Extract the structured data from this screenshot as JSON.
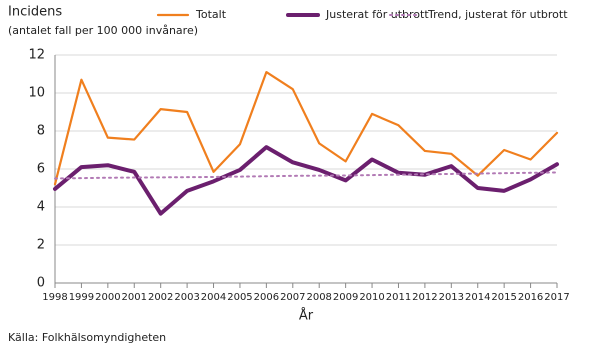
{
  "chart_data": {
    "type": "line",
    "title": "Incidens",
    "subtitle": "(antalet fall per 100 000 invånare)",
    "x_label": "År",
    "source": "Källa: Folkhälsomyndigheten",
    "categories": [
      "1998",
      "1999",
      "2000",
      "2001",
      "2002",
      "2003",
      "2004",
      "2005",
      "2006",
      "2007",
      "2008",
      "2009",
      "2010",
      "2011",
      "2012",
      "2013",
      "2014",
      "2015",
      "2016",
      "2017"
    ],
    "series": [
      {
        "name": "Totalt",
        "color": "#f07f1e",
        "style": "solid",
        "values": [
          5.2,
          10.7,
          7.65,
          7.55,
          9.15,
          9.0,
          5.85,
          7.3,
          11.1,
          10.2,
          7.35,
          6.4,
          8.9,
          8.3,
          6.95,
          6.8,
          5.65,
          7.0,
          6.5,
          7.9
        ]
      },
      {
        "name": "Justerat för utbrott",
        "color": "#6b1f6e",
        "style": "thick",
        "values": [
          4.95,
          6.1,
          6.2,
          5.85,
          3.65,
          4.85,
          5.35,
          5.95,
          7.15,
          6.35,
          5.95,
          5.4,
          6.5,
          5.8,
          5.7,
          6.15,
          5.0,
          4.85,
          5.45,
          6.25
        ]
      },
      {
        "name": "Trend, justerat för utbrott",
        "color": "#b27ab5",
        "style": "dotted",
        "values": [
          5.5,
          5.52,
          5.54,
          5.55,
          5.56,
          5.57,
          5.58,
          5.6,
          5.62,
          5.64,
          5.65,
          5.66,
          5.68,
          5.7,
          5.72,
          5.74,
          5.76,
          5.78,
          5.8,
          5.82
        ]
      }
    ],
    "ylim": [
      0,
      12
    ],
    "yticks": [
      0,
      2,
      4,
      6,
      8,
      10,
      12
    ],
    "grid": true
  }
}
